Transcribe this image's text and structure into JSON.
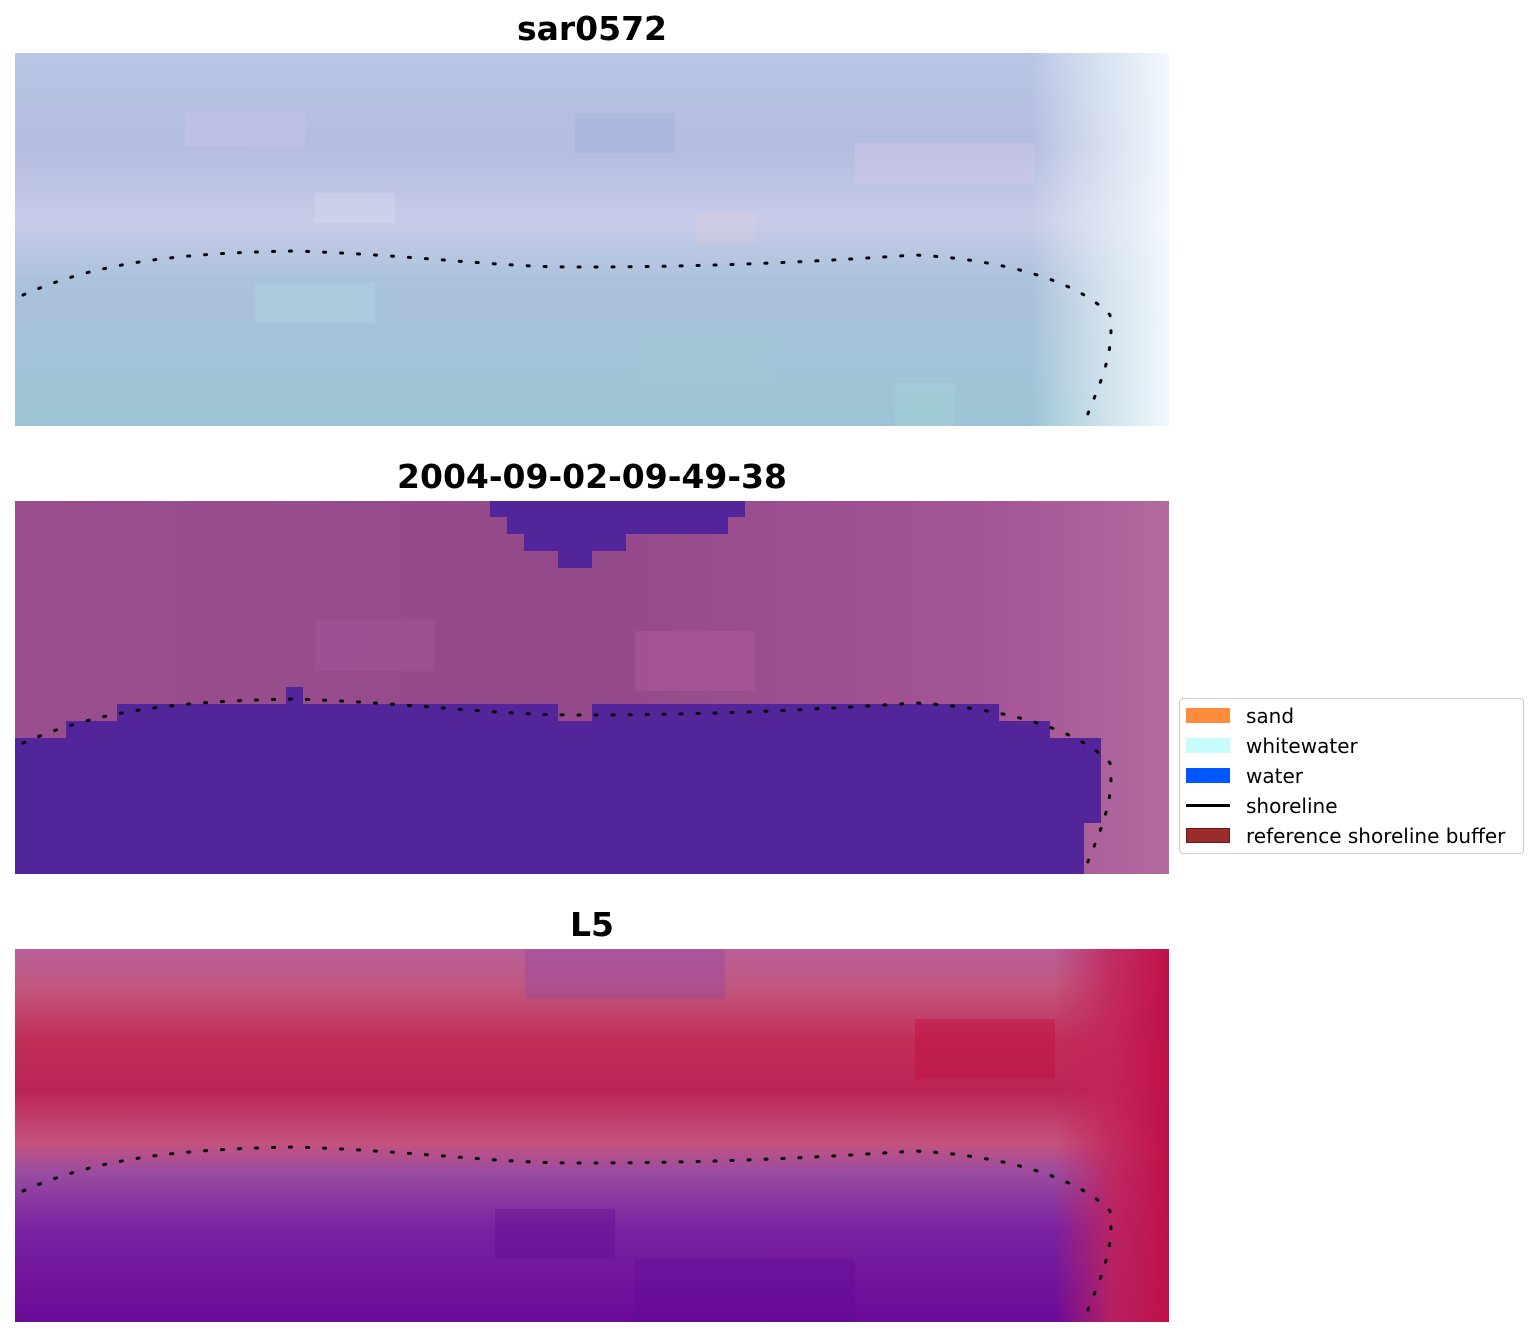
{
  "panels": [
    {
      "title": "sar0572",
      "description_icon": "rgb-satellite-image"
    },
    {
      "title": "2004-09-02-09-49-38",
      "description_icon": "classified-image"
    },
    {
      "title": "L5",
      "description_icon": "water-index-image"
    }
  ],
  "legend": {
    "items": [
      {
        "label": "sand",
        "color": "#ff8c3a",
        "kind": "patch"
      },
      {
        "label": "whitewater",
        "color": "#c8fdfd",
        "kind": "patch"
      },
      {
        "label": "water",
        "color": "#0057ff",
        "kind": "patch"
      },
      {
        "label": "shoreline",
        "color": "#000000",
        "kind": "line"
      },
      {
        "label": "reference shoreline buffer",
        "color": "#9a2c2c",
        "kind": "patch"
      }
    ]
  },
  "colors": {
    "classified_water_overlay": "#52259a",
    "classified_background": "#9c4e8c",
    "shoreline_dots": "#000000"
  }
}
